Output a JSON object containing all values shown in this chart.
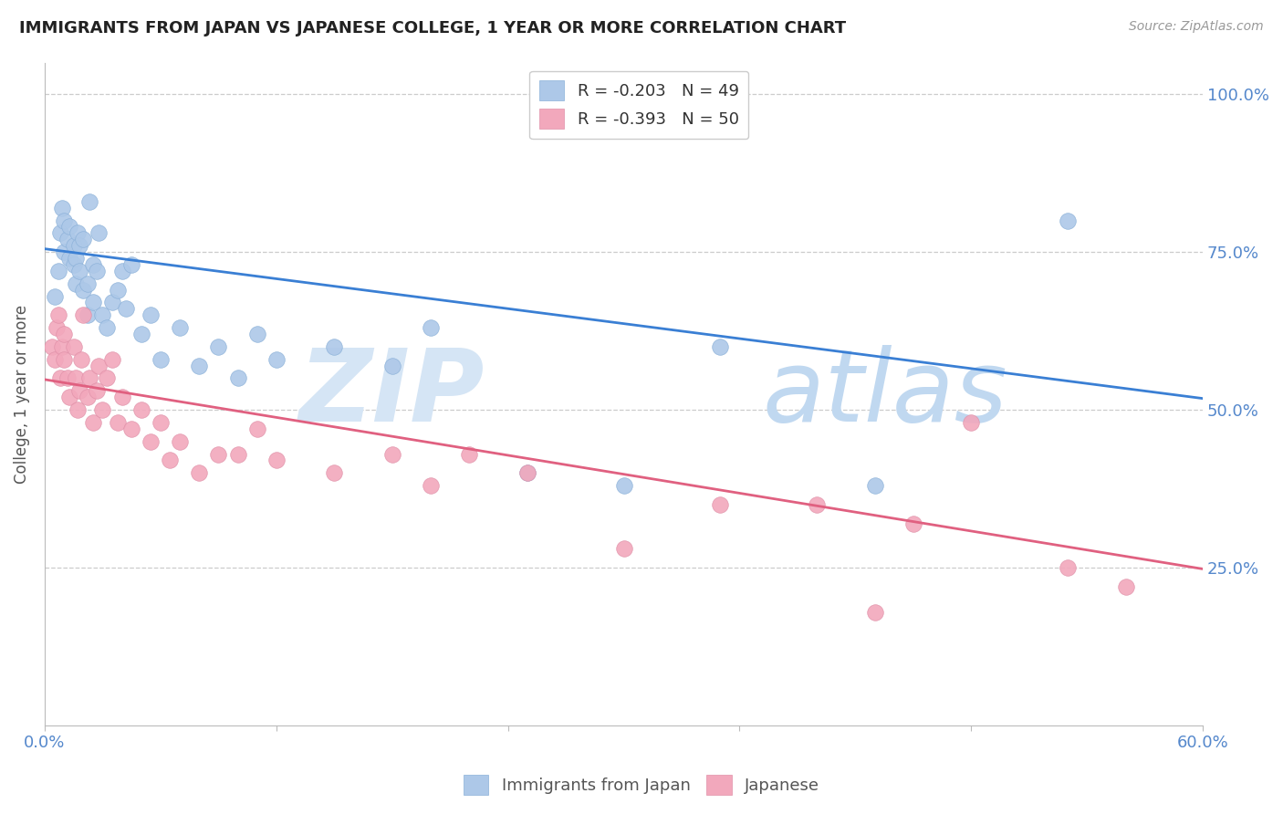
{
  "title": "IMMIGRANTS FROM JAPAN VS JAPANESE COLLEGE, 1 YEAR OR MORE CORRELATION CHART",
  "source": "Source: ZipAtlas.com",
  "ylabel": "College, 1 year or more",
  "ytick_labels": [
    "100.0%",
    "75.0%",
    "50.0%",
    "25.0%"
  ],
  "ytick_values": [
    1.0,
    0.75,
    0.5,
    0.25
  ],
  "xlim": [
    0.0,
    0.6
  ],
  "ylim": [
    0.0,
    1.05
  ],
  "blue_R": -0.203,
  "blue_N": 49,
  "pink_R": -0.393,
  "pink_N": 50,
  "blue_label": "Immigrants from Japan",
  "pink_label": "Japanese",
  "blue_color": "#adc8e8",
  "pink_color": "#f2a8bc",
  "blue_line_color": "#3a7fd4",
  "pink_line_color": "#e06080",
  "axis_color": "#5588cc",
  "watermark_color": "#d5e5f5",
  "watermark_color2": "#c0d8f0",
  "blue_line_y0": 0.755,
  "blue_line_y1": 0.518,
  "pink_line_y0": 0.548,
  "pink_line_y1": 0.248,
  "blue_x": [
    0.005,
    0.007,
    0.008,
    0.009,
    0.01,
    0.01,
    0.012,
    0.013,
    0.013,
    0.015,
    0.015,
    0.016,
    0.016,
    0.017,
    0.018,
    0.018,
    0.02,
    0.02,
    0.022,
    0.022,
    0.023,
    0.025,
    0.025,
    0.027,
    0.028,
    0.03,
    0.032,
    0.035,
    0.038,
    0.04,
    0.042,
    0.045,
    0.05,
    0.055,
    0.06,
    0.07,
    0.08,
    0.09,
    0.1,
    0.11,
    0.12,
    0.15,
    0.18,
    0.2,
    0.25,
    0.3,
    0.35,
    0.43,
    0.53
  ],
  "blue_y": [
    0.68,
    0.72,
    0.78,
    0.82,
    0.75,
    0.8,
    0.77,
    0.74,
    0.79,
    0.73,
    0.76,
    0.7,
    0.74,
    0.78,
    0.72,
    0.76,
    0.69,
    0.77,
    0.65,
    0.7,
    0.83,
    0.67,
    0.73,
    0.72,
    0.78,
    0.65,
    0.63,
    0.67,
    0.69,
    0.72,
    0.66,
    0.73,
    0.62,
    0.65,
    0.58,
    0.63,
    0.57,
    0.6,
    0.55,
    0.62,
    0.58,
    0.6,
    0.57,
    0.63,
    0.4,
    0.38,
    0.6,
    0.38,
    0.8
  ],
  "pink_x": [
    0.004,
    0.005,
    0.006,
    0.007,
    0.008,
    0.009,
    0.01,
    0.01,
    0.012,
    0.013,
    0.015,
    0.016,
    0.017,
    0.018,
    0.019,
    0.02,
    0.022,
    0.023,
    0.025,
    0.027,
    0.028,
    0.03,
    0.032,
    0.035,
    0.038,
    0.04,
    0.045,
    0.05,
    0.055,
    0.06,
    0.065,
    0.07,
    0.08,
    0.09,
    0.1,
    0.11,
    0.12,
    0.15,
    0.18,
    0.2,
    0.22,
    0.25,
    0.3,
    0.35,
    0.4,
    0.43,
    0.45,
    0.48,
    0.53,
    0.56
  ],
  "pink_y": [
    0.6,
    0.58,
    0.63,
    0.65,
    0.55,
    0.6,
    0.58,
    0.62,
    0.55,
    0.52,
    0.6,
    0.55,
    0.5,
    0.53,
    0.58,
    0.65,
    0.52,
    0.55,
    0.48,
    0.53,
    0.57,
    0.5,
    0.55,
    0.58,
    0.48,
    0.52,
    0.47,
    0.5,
    0.45,
    0.48,
    0.42,
    0.45,
    0.4,
    0.43,
    0.43,
    0.47,
    0.42,
    0.4,
    0.43,
    0.38,
    0.43,
    0.4,
    0.28,
    0.35,
    0.35,
    0.18,
    0.32,
    0.48,
    0.25,
    0.22
  ]
}
